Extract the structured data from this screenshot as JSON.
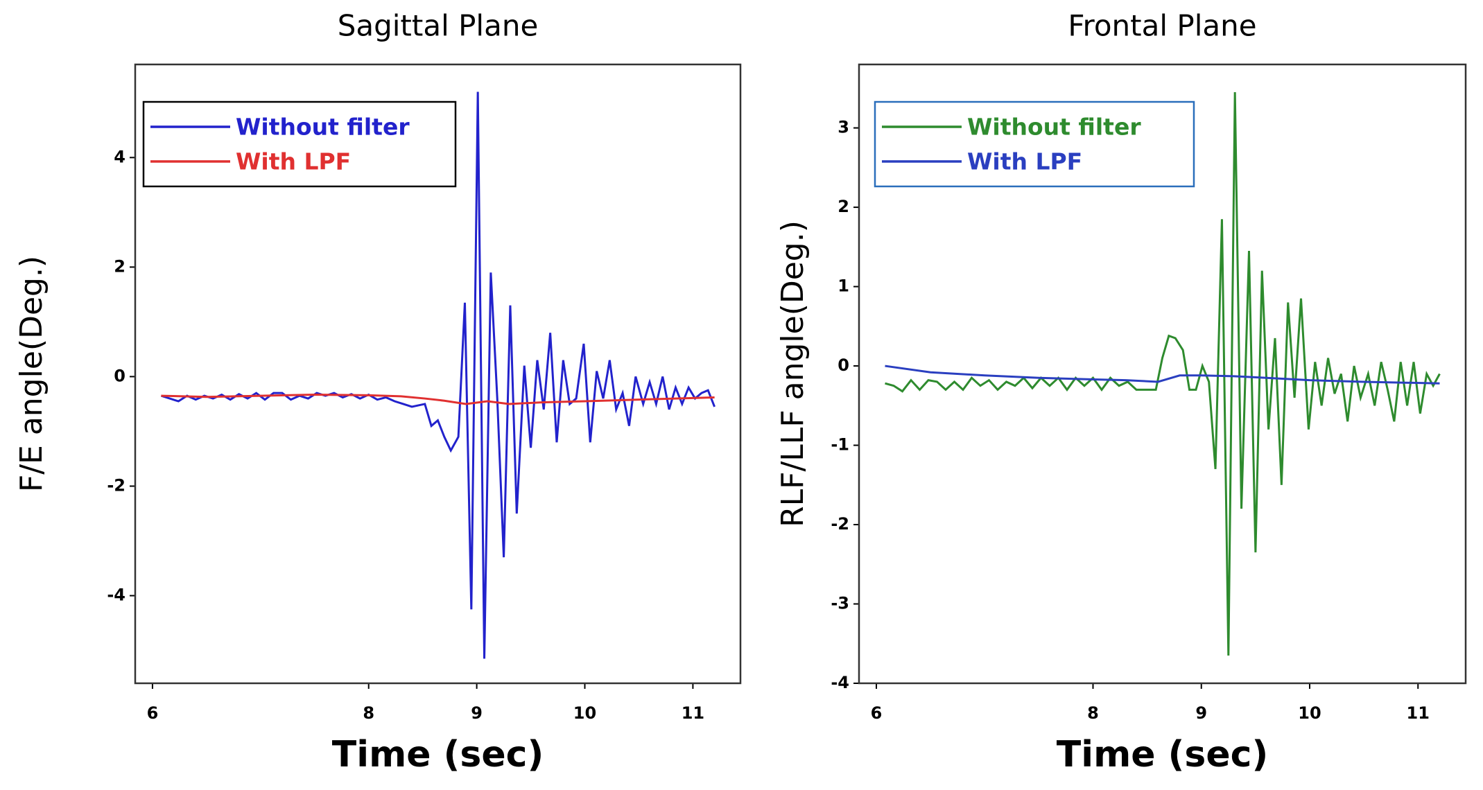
{
  "chart_data": [
    {
      "type": "line",
      "title": "Sagittal Plane",
      "xlabel": "Time (sec)",
      "ylabel": "F/E angle(Deg.)",
      "xlim": [
        5.84,
        11.44
      ],
      "ylim": [
        -5.6,
        5.7
      ],
      "xticks": [
        6,
        8,
        9,
        10,
        11
      ],
      "yticks": [
        -4,
        -2,
        0,
        2,
        4
      ],
      "legend_border": "#000000",
      "series": [
        {
          "name": "Without filter",
          "color": "#2222cc",
          "x": [
            6.08,
            6.16,
            6.24,
            6.32,
            6.4,
            6.48,
            6.56,
            6.64,
            6.72,
            6.8,
            6.88,
            6.96,
            7.04,
            7.12,
            7.2,
            7.28,
            7.36,
            7.44,
            7.52,
            7.6,
            7.68,
            7.76,
            7.84,
            7.92,
            8.0,
            8.08,
            8.16,
            8.24,
            8.32,
            8.4,
            8.52,
            8.58,
            8.64,
            8.7,
            8.76,
            8.83,
            8.89,
            8.95,
            9.01,
            9.07,
            9.13,
            9.19,
            9.25,
            9.31,
            9.37,
            9.44,
            9.5,
            9.56,
            9.62,
            9.68,
            9.74,
            9.8,
            9.86,
            9.92,
            9.99,
            10.05,
            10.11,
            10.17,
            10.23,
            10.29,
            10.35,
            10.41,
            10.47,
            10.54,
            10.6,
            10.66,
            10.72,
            10.78,
            10.84,
            10.9,
            10.96,
            11.02,
            11.08,
            11.14,
            11.2
          ],
          "values": [
            -0.35,
            -0.4,
            -0.45,
            -0.35,
            -0.42,
            -0.35,
            -0.4,
            -0.33,
            -0.42,
            -0.32,
            -0.4,
            -0.3,
            -0.42,
            -0.3,
            -0.3,
            -0.42,
            -0.35,
            -0.4,
            -0.3,
            -0.35,
            -0.3,
            -0.38,
            -0.32,
            -0.4,
            -0.33,
            -0.42,
            -0.38,
            -0.45,
            -0.5,
            -0.55,
            -0.5,
            -0.9,
            -0.8,
            -1.1,
            -1.35,
            -1.1,
            1.35,
            -4.25,
            5.2,
            -5.15,
            1.9,
            -0.4,
            -3.3,
            1.3,
            -2.5,
            0.2,
            -1.3,
            0.3,
            -0.6,
            0.8,
            -1.2,
            0.3,
            -0.5,
            -0.4,
            0.6,
            -1.2,
            0.1,
            -0.4,
            0.3,
            -0.6,
            -0.3,
            -0.9,
            0.0,
            -0.5,
            -0.1,
            -0.5,
            0.0,
            -0.6,
            -0.2,
            -0.5,
            -0.2,
            -0.4,
            -0.3,
            -0.25,
            -0.55
          ]
        },
        {
          "name": "With LPF",
          "color": "#e03030",
          "x": [
            6.08,
            6.5,
            7.0,
            7.5,
            8.0,
            8.3,
            8.52,
            8.7,
            8.9,
            9.1,
            9.3,
            9.6,
            10.0,
            10.5,
            11.2
          ],
          "values": [
            -0.35,
            -0.37,
            -0.35,
            -0.33,
            -0.34,
            -0.36,
            -0.4,
            -0.44,
            -0.5,
            -0.45,
            -0.5,
            -0.47,
            -0.45,
            -0.42,
            -0.38
          ]
        }
      ]
    },
    {
      "type": "line",
      "title": "Frontal Plane",
      "xlabel": "Time (sec)",
      "ylabel": "RLF/LLF angle(Deg.)",
      "xlim": [
        5.84,
        11.44
      ],
      "ylim": [
        -4,
        3.8
      ],
      "xticks": [
        6,
        8,
        9,
        10,
        11
      ],
      "yticks": [
        -4,
        -3,
        -2,
        -1,
        0,
        1,
        2,
        3
      ],
      "legend_border": "#2a6ebb",
      "series": [
        {
          "name": "Without filter",
          "color": "#2e8b2e",
          "x": [
            6.08,
            6.16,
            6.24,
            6.32,
            6.4,
            6.48,
            6.56,
            6.64,
            6.72,
            6.8,
            6.88,
            6.96,
            7.04,
            7.12,
            7.2,
            7.28,
            7.36,
            7.44,
            7.52,
            7.6,
            7.68,
            7.76,
            7.84,
            7.92,
            8.0,
            8.08,
            8.16,
            8.24,
            8.32,
            8.4,
            8.58,
            8.64,
            8.7,
            8.76,
            8.83,
            8.89,
            8.95,
            9.01,
            9.07,
            9.13,
            9.19,
            9.25,
            9.31,
            9.37,
            9.44,
            9.5,
            9.56,
            9.62,
            9.68,
            9.74,
            9.8,
            9.86,
            9.92,
            9.99,
            10.05,
            10.11,
            10.17,
            10.23,
            10.29,
            10.35,
            10.41,
            10.47,
            10.54,
            10.6,
            10.66,
            10.72,
            10.78,
            10.84,
            10.9,
            10.96,
            11.02,
            11.08,
            11.14,
            11.2
          ],
          "values": [
            -0.22,
            -0.25,
            -0.32,
            -0.18,
            -0.3,
            -0.18,
            -0.2,
            -0.3,
            -0.2,
            -0.3,
            -0.15,
            -0.25,
            -0.18,
            -0.3,
            -0.2,
            -0.25,
            -0.15,
            -0.28,
            -0.15,
            -0.25,
            -0.15,
            -0.3,
            -0.15,
            -0.25,
            -0.15,
            -0.3,
            -0.15,
            -0.25,
            -0.2,
            -0.3,
            -0.3,
            0.1,
            0.38,
            0.35,
            0.2,
            -0.3,
            -0.3,
            0,
            -0.2,
            -1.3,
            1.85,
            -3.65,
            3.45,
            -1.8,
            1.45,
            -2.35,
            1.2,
            -0.8,
            0.35,
            -1.5,
            0.8,
            -0.4,
            0.85,
            -0.8,
            0.05,
            -0.5,
            0.1,
            -0.35,
            -0.1,
            -0.7,
            0,
            -0.4,
            -0.1,
            -0.5,
            0.05,
            -0.3,
            -0.7,
            0.05,
            -0.5,
            0.05,
            -0.6,
            -0.1,
            -0.25,
            -0.1
          ]
        },
        {
          "name": "With LPF",
          "color": "#2a3fc0",
          "x": [
            6.08,
            6.5,
            7.0,
            7.5,
            8.0,
            8.3,
            8.6,
            8.8,
            9.0,
            9.3,
            9.6,
            10.0,
            10.5,
            11.2
          ],
          "values": [
            0.0,
            -0.08,
            -0.12,
            -0.15,
            -0.17,
            -0.18,
            -0.2,
            -0.12,
            -0.12,
            -0.13,
            -0.15,
            -0.18,
            -0.2,
            -0.22
          ]
        }
      ]
    }
  ]
}
